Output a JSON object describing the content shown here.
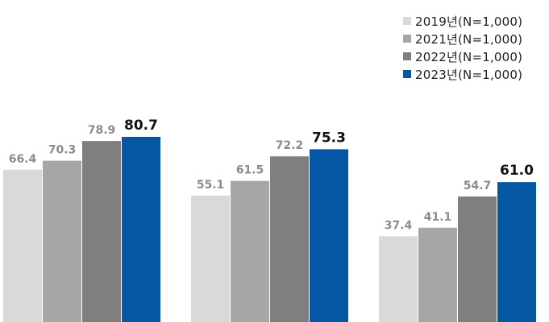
{
  "chart_data": {
    "type": "bar",
    "title": "",
    "xlabel": "",
    "ylabel": "",
    "ylim": [
      0,
      100
    ],
    "grid": false,
    "legend_position": "top-right",
    "categories": [
      "",
      "",
      ""
    ],
    "series": [
      {
        "name": "2019년(N=1,000)",
        "color": "#d9d9d9",
        "label_color": "#8c8c8c",
        "values": [
          66.4,
          55.1,
          37.4
        ],
        "labels": [
          "66.4",
          "55.1",
          "37.4"
        ]
      },
      {
        "name": "2021년(N=1,000)",
        "color": "#a6a6a6",
        "label_color": "#8c8c8c",
        "values": [
          70.3,
          61.5,
          41.1
        ],
        "labels": [
          "70.3",
          "61.5",
          "41.1"
        ]
      },
      {
        "name": "2022년(N=1,000)",
        "color": "#7f7f7f",
        "label_color": "#8c8c8c",
        "values": [
          78.9,
          72.2,
          54.7
        ],
        "labels": [
          "78.9",
          "72.2",
          "54.7"
        ]
      },
      {
        "name": "2023년(N=1,000)",
        "color": "#0557a4",
        "label_color": "#111111",
        "values": [
          80.7,
          75.3,
          61.0
        ],
        "labels": [
          "80.7",
          "75.3",
          "61.0"
        ]
      }
    ]
  }
}
